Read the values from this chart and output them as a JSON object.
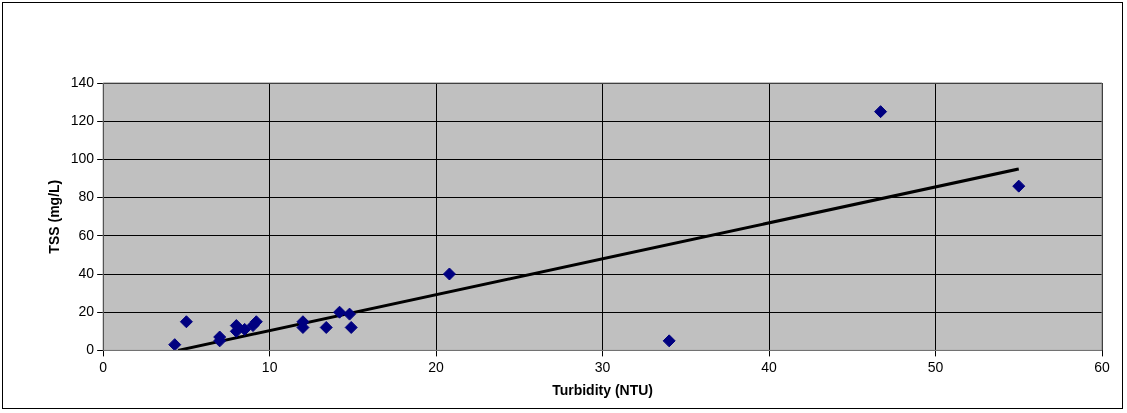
{
  "chart_data": {
    "type": "scatter",
    "xlabel": "Turbidity (NTU)",
    "ylabel": "TSS (mg/L)",
    "xlim": [
      0,
      60
    ],
    "xticks": [
      0,
      10,
      20,
      30,
      40,
      50,
      60
    ],
    "ylim": [
      0,
      140
    ],
    "yticks": [
      0,
      20,
      40,
      60,
      80,
      100,
      120,
      140
    ],
    "grid": true,
    "marker": "diamond",
    "legend": false,
    "series": [
      {
        "color": "#000080",
        "x": [
          4.3,
          5,
          7,
          7,
          8,
          8,
          8.5,
          9,
          9.2,
          12,
          12,
          13.4,
          14.2,
          14.8,
          14.9,
          20.8,
          34,
          46.7,
          55
        ],
        "values": [
          3,
          15,
          7,
          5,
          13,
          10,
          11,
          13,
          15,
          15,
          12,
          12,
          20,
          19,
          12,
          40,
          5,
          125,
          86
        ]
      },
      {
        "type": "line",
        "color": "#000000",
        "line_style": "solid",
        "marker": "none",
        "x": [
          4.5,
          55
        ],
        "values": [
          0,
          95
        ]
      }
    ]
  }
}
